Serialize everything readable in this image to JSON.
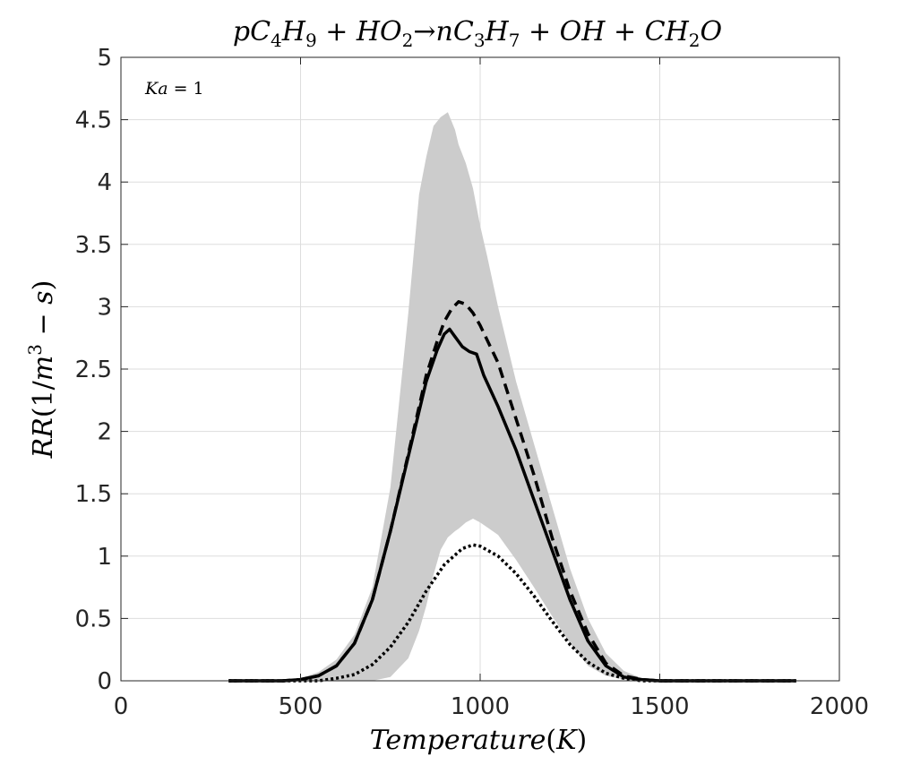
{
  "chart_data": {
    "type": "line",
    "title": "pC4H9 + HO2→nC3H7 + OH + CH2O",
    "xlabel": "Temperature(K)",
    "ylabel": "RR(1/m3 − s)",
    "annotation": "Ka = 1",
    "xlim": [
      0,
      2000
    ],
    "ylim": [
      0,
      5
    ],
    "xticks": [
      "0",
      "500",
      "1000",
      "1500",
      "2000"
    ],
    "yticks": [
      "0",
      "0.5",
      "1",
      "1.5",
      "2",
      "2.5",
      "3",
      "3.5",
      "4",
      "4.5",
      "5"
    ],
    "grid": true,
    "colors": {
      "band": "#cccccc",
      "line": "#000000",
      "grid": "#dddddd",
      "axis": "#262626"
    },
    "band": {
      "x": [
        300,
        450,
        500,
        550,
        600,
        650,
        700,
        750,
        800,
        830,
        850,
        870,
        890,
        910,
        930,
        940,
        960,
        980,
        1000,
        1020,
        1050,
        1100,
        1150,
        1200,
        1250,
        1300,
        1350,
        1400,
        1450,
        1500,
        1550,
        1880
      ],
      "upper": [
        0.0,
        0.0,
        0.02,
        0.07,
        0.17,
        0.37,
        0.75,
        1.55,
        2.95,
        3.9,
        4.2,
        4.45,
        4.52,
        4.56,
        4.42,
        4.3,
        4.15,
        3.95,
        3.65,
        3.4,
        3.0,
        2.4,
        1.9,
        1.4,
        0.9,
        0.5,
        0.22,
        0.08,
        0.02,
        0.0,
        0.0,
        0.0
      ],
      "lower": [
        0.0,
        0.0,
        0.0,
        0.0,
        0.0,
        0.0,
        0.0,
        0.03,
        0.18,
        0.4,
        0.6,
        0.85,
        1.05,
        1.15,
        1.2,
        1.22,
        1.27,
        1.3,
        1.27,
        1.23,
        1.17,
        0.97,
        0.75,
        0.52,
        0.3,
        0.12,
        0.04,
        0.01,
        0.0,
        0.0,
        0.0,
        0.0
      ]
    },
    "series": [
      {
        "style": "solid",
        "x": [
          300,
          450,
          500,
          550,
          600,
          650,
          700,
          750,
          800,
          850,
          880,
          900,
          915,
          930,
          950,
          970,
          990,
          1010,
          1050,
          1100,
          1150,
          1200,
          1250,
          1300,
          1350,
          1400,
          1450,
          1500,
          1550,
          1880
        ],
        "y": [
          0.0,
          0.0,
          0.01,
          0.04,
          0.12,
          0.3,
          0.65,
          1.2,
          1.8,
          2.4,
          2.65,
          2.78,
          2.82,
          2.76,
          2.68,
          2.64,
          2.62,
          2.45,
          2.2,
          1.85,
          1.45,
          1.05,
          0.65,
          0.32,
          0.12,
          0.03,
          0.01,
          0.0,
          0.0,
          0.0
        ]
      },
      {
        "style": "dashed",
        "x": [
          300,
          450,
          500,
          550,
          600,
          650,
          700,
          750,
          800,
          850,
          880,
          900,
          920,
          940,
          960,
          980,
          1000,
          1050,
          1100,
          1150,
          1200,
          1250,
          1300,
          1350,
          1400,
          1450,
          1500,
          1550,
          1880
        ],
        "y": [
          0.0,
          0.0,
          0.01,
          0.04,
          0.12,
          0.3,
          0.65,
          1.2,
          1.82,
          2.45,
          2.72,
          2.88,
          2.98,
          3.04,
          3.02,
          2.95,
          2.85,
          2.55,
          2.1,
          1.65,
          1.15,
          0.72,
          0.38,
          0.14,
          0.04,
          0.01,
          0.0,
          0.0,
          0.0
        ]
      },
      {
        "style": "dotted",
        "x": [
          300,
          550,
          600,
          650,
          700,
          750,
          800,
          850,
          900,
          950,
          980,
          1000,
          1050,
          1100,
          1150,
          1200,
          1250,
          1300,
          1350,
          1400,
          1450,
          1500,
          1880
        ],
        "y": [
          0.0,
          0.0,
          0.02,
          0.05,
          0.13,
          0.27,
          0.47,
          0.72,
          0.93,
          1.06,
          1.09,
          1.08,
          1.0,
          0.86,
          0.68,
          0.48,
          0.29,
          0.15,
          0.06,
          0.02,
          0.0,
          0.0,
          0.0
        ]
      }
    ]
  }
}
